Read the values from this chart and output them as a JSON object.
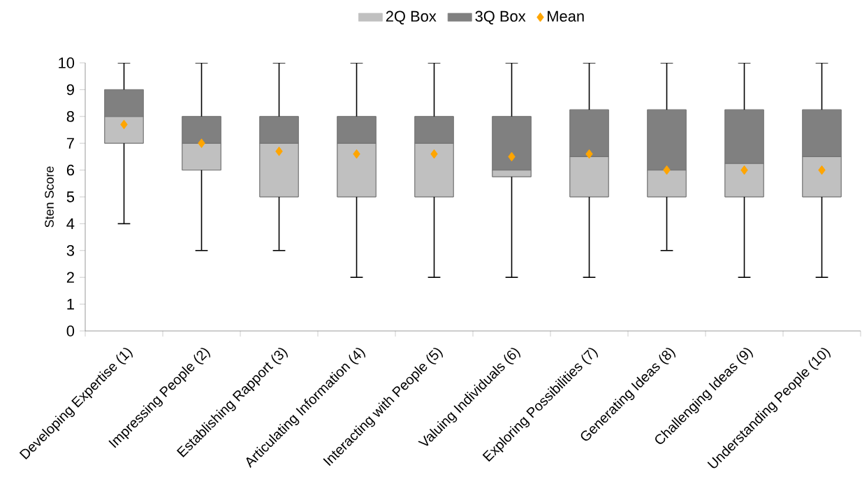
{
  "chart_data": {
    "type": "box",
    "ylabel": "Sten Score",
    "categories": [
      "Developing Expertise (1)",
      "Impressing People (2)",
      "Establishing Rapport (3)",
      "Articulating Information (4)",
      "Interacting with People (5)",
      "Valuing Individuals (6)",
      "Exploring Possibilities (7)",
      "Generating Ideas (8)",
      "Challenging Ideas (9)",
      "Understanding People (10)"
    ],
    "boxes": [
      {
        "low": 4,
        "q1": 7,
        "median": 8,
        "q3": 9,
        "high": 10
      },
      {
        "low": 3,
        "q1": 6,
        "median": 7,
        "q3": 8,
        "high": 10
      },
      {
        "low": 3,
        "q1": 5,
        "median": 7,
        "q3": 8,
        "high": 10
      },
      {
        "low": 2,
        "q1": 5,
        "median": 7,
        "q3": 8,
        "high": 10
      },
      {
        "low": 2,
        "q1": 5,
        "median": 7,
        "q3": 8,
        "high": 10
      },
      {
        "low": 2,
        "q1": 5.75,
        "median": 6,
        "q3": 8,
        "high": 10
      },
      {
        "low": 2,
        "q1": 5,
        "median": 6.5,
        "q3": 8.25,
        "high": 10
      },
      {
        "low": 3,
        "q1": 5,
        "median": 6,
        "q3": 8.25,
        "high": 10
      },
      {
        "low": 2,
        "q1": 5,
        "median": 6.25,
        "q3": 8.25,
        "high": 10
      },
      {
        "low": 2,
        "q1": 5,
        "median": 6.5,
        "q3": 8.25,
        "high": 10
      }
    ],
    "series": [
      {
        "name": "2Q Box",
        "type": "bar",
        "color": "#c0c0c0",
        "base": [
          7,
          6,
          5,
          5,
          5,
          5.75,
          5,
          5,
          5,
          5
        ],
        "values": [
          1,
          1,
          2,
          2,
          2,
          0.25,
          1.5,
          1,
          1.25,
          1.5
        ]
      },
      {
        "name": "3Q Box",
        "type": "bar",
        "color": "#808080",
        "base": [
          8,
          7,
          7,
          7,
          7,
          6,
          6.5,
          6,
          6.25,
          6.5
        ],
        "values": [
          1,
          1,
          1,
          1,
          1,
          2,
          1.75,
          2.25,
          2,
          1.75
        ]
      },
      {
        "name": "Mean",
        "type": "scatter",
        "color": "#ffa500",
        "marker": "diamond",
        "x": [
          "Developing Expertise (1)",
          "Impressing People (2)",
          "Establishing Rapport (3)",
          "Articulating Information (4)",
          "Interacting with People (5)",
          "Valuing Individuals (6)",
          "Exploring Possibilities (7)",
          "Generating Ideas (8)",
          "Challenging Ideas (9)",
          "Understanding People (10)"
        ],
        "values": [
          7.7,
          7.0,
          6.7,
          6.6,
          6.6,
          6.5,
          6.6,
          6.0,
          6.0,
          6.0
        ]
      }
    ],
    "ylim": [
      0,
      10
    ],
    "yticks": [
      0,
      1,
      2,
      3,
      4,
      5,
      6,
      7,
      8,
      9,
      10
    ],
    "grid": false,
    "legend": "top"
  }
}
